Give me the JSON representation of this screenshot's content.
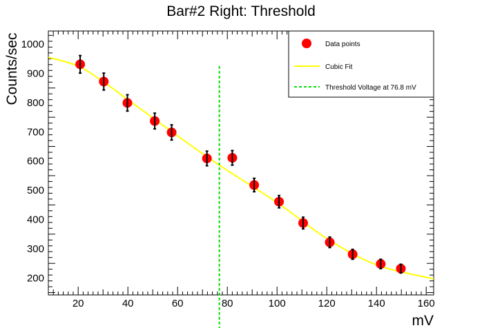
{
  "chart_data": {
    "type": "scatter",
    "title": "Bar#2 Right: Threshold",
    "xlabel": "mV",
    "ylabel": "Counts/sec",
    "xlim": [
      8,
      163
    ],
    "ylim": [
      142,
      1045
    ],
    "x_ticks": [
      20,
      40,
      60,
      80,
      100,
      120,
      140,
      160
    ],
    "y_ticks": [
      200,
      300,
      400,
      500,
      600,
      700,
      800,
      900,
      1000
    ],
    "series": [
      {
        "name": "Data points",
        "style": "markers",
        "color": "#ff0000",
        "points": [
          {
            "x": 20.8,
            "y": 931,
            "err": 30
          },
          {
            "x": 30.3,
            "y": 872,
            "err": 29
          },
          {
            "x": 39.8,
            "y": 799,
            "err": 28
          },
          {
            "x": 50.8,
            "y": 737,
            "err": 27
          },
          {
            "x": 57.6,
            "y": 698,
            "err": 26
          },
          {
            "x": 71.8,
            "y": 609,
            "err": 25
          },
          {
            "x": 82.0,
            "y": 611,
            "err": 25
          },
          {
            "x": 90.8,
            "y": 518,
            "err": 23
          },
          {
            "x": 100.8,
            "y": 461,
            "err": 21
          },
          {
            "x": 110.5,
            "y": 388,
            "err": 20
          },
          {
            "x": 121.2,
            "y": 322,
            "err": 18
          },
          {
            "x": 130.4,
            "y": 281,
            "err": 17
          },
          {
            "x": 141.7,
            "y": 248,
            "err": 16
          },
          {
            "x": 149.8,
            "y": 232,
            "err": 15
          }
        ]
      },
      {
        "name": "Cubic Fit",
        "style": "line",
        "color": "#ffff00",
        "fit_points": [
          {
            "x": 8,
            "y": 955
          },
          {
            "x": 20,
            "y": 925
          },
          {
            "x": 30,
            "y": 872
          },
          {
            "x": 40,
            "y": 810
          },
          {
            "x": 60,
            "y": 686
          },
          {
            "x": 76.8,
            "y": 586
          },
          {
            "x": 100,
            "y": 458
          },
          {
            "x": 120,
            "y": 335
          },
          {
            "x": 140,
            "y": 245
          },
          {
            "x": 163,
            "y": 197
          }
        ]
      },
      {
        "name": "Threshold Voltage at 76.8 mV",
        "style": "vline",
        "color": "#00dd00",
        "x": 76.8,
        "y_top": 925
      }
    ],
    "legend_position": "top-right"
  }
}
